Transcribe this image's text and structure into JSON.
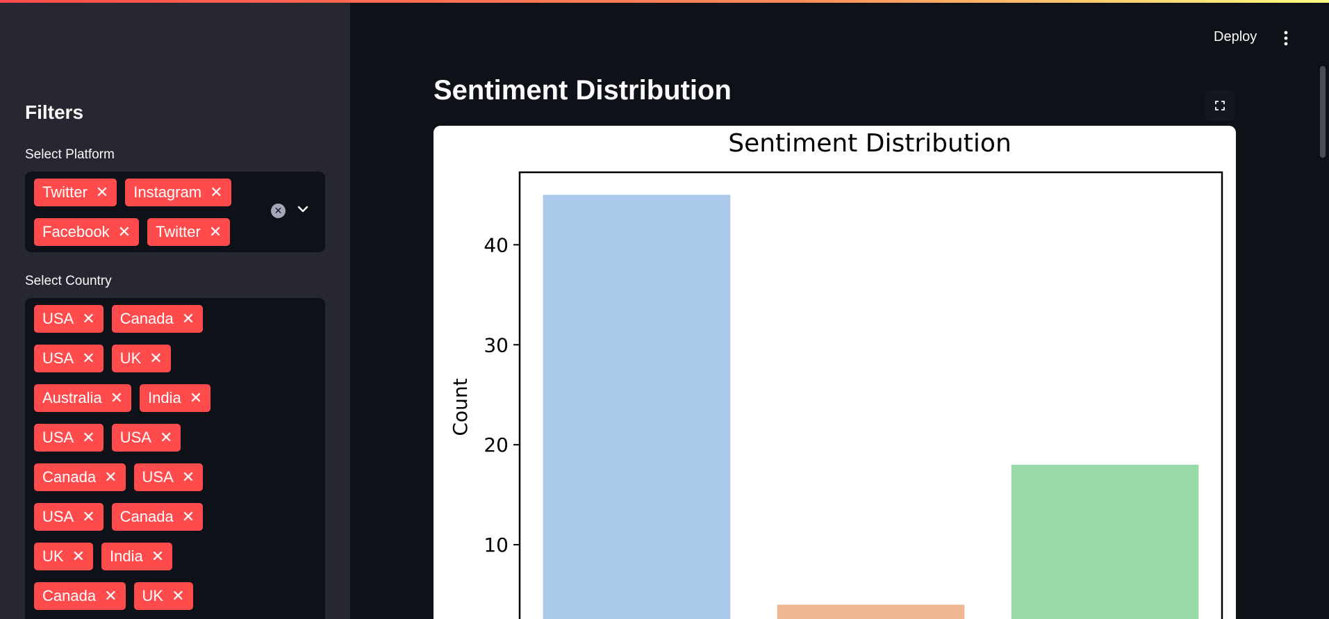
{
  "sidebar": {
    "title": "Filters",
    "platform": {
      "label": "Select Platform",
      "selected": [
        "Twitter",
        "Instagram",
        "Facebook",
        "Twitter"
      ]
    },
    "country": {
      "label": "Select Country",
      "selected": [
        "USA",
        "Canada",
        "USA",
        "UK",
        "Australia",
        "India",
        "USA",
        "USA",
        "Canada",
        "USA",
        "USA",
        "Canada",
        "UK",
        "India",
        "Canada",
        "UK"
      ]
    }
  },
  "header": {
    "deploy_label": "Deploy"
  },
  "main": {
    "title": "Sentiment Distribution"
  },
  "colors": {
    "accent": "#ff4b4b",
    "sidebar_bg": "#262730",
    "app_bg": "#0e1117"
  },
  "chart_data": {
    "type": "bar",
    "title": "Sentiment Distribution",
    "ylabel": "Count",
    "xlabel": "",
    "categories": [
      "",
      "",
      ""
    ],
    "values": [
      45,
      4,
      18
    ],
    "colors": [
      "#abc9ea",
      "#efb792",
      "#98daa7"
    ],
    "yticks": [
      10,
      20,
      30,
      40
    ],
    "ylim": [
      0,
      47.25
    ],
    "grid": false
  }
}
